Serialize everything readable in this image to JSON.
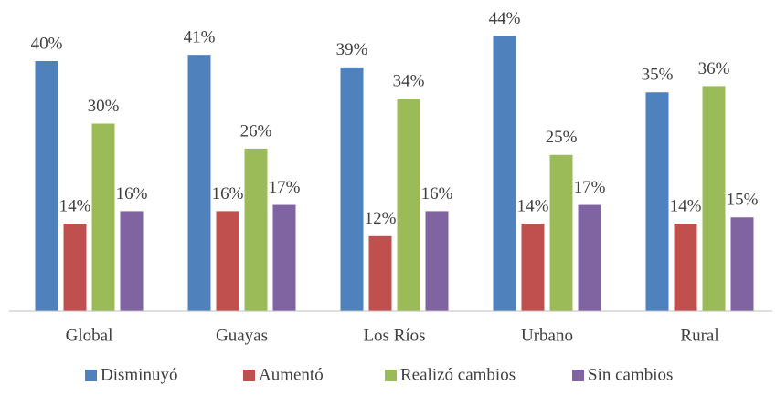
{
  "chart_data": {
    "type": "bar",
    "categories": [
      "Global",
      "Guayas",
      "Los Ríos",
      "Urbano",
      "Rural"
    ],
    "series": [
      {
        "name": "Disminuyó",
        "color": "#4f81bd",
        "values": [
          40,
          41,
          39,
          44,
          35
        ],
        "value_labels": [
          "40%",
          "41%",
          "39%",
          "44%",
          "35%"
        ]
      },
      {
        "name": "Aumentó",
        "color": "#c0504d",
        "values": [
          14,
          16,
          12,
          14,
          14
        ],
        "value_labels": [
          "14%",
          "16%",
          "12%",
          "14%",
          "14%"
        ]
      },
      {
        "name": "Realizó cambios",
        "color": "#9bbb59",
        "values": [
          30,
          26,
          34,
          25,
          36
        ],
        "value_labels": [
          "30%",
          "26%",
          "34%",
          "25%",
          "36%"
        ]
      },
      {
        "name": "Sin cambios",
        "color": "#8064a2",
        "values": [
          16,
          17,
          16,
          17,
          15
        ],
        "value_labels": [
          "16%",
          "17%",
          "16%",
          "17%",
          "15%"
        ]
      }
    ],
    "legend": "bottom"
  }
}
